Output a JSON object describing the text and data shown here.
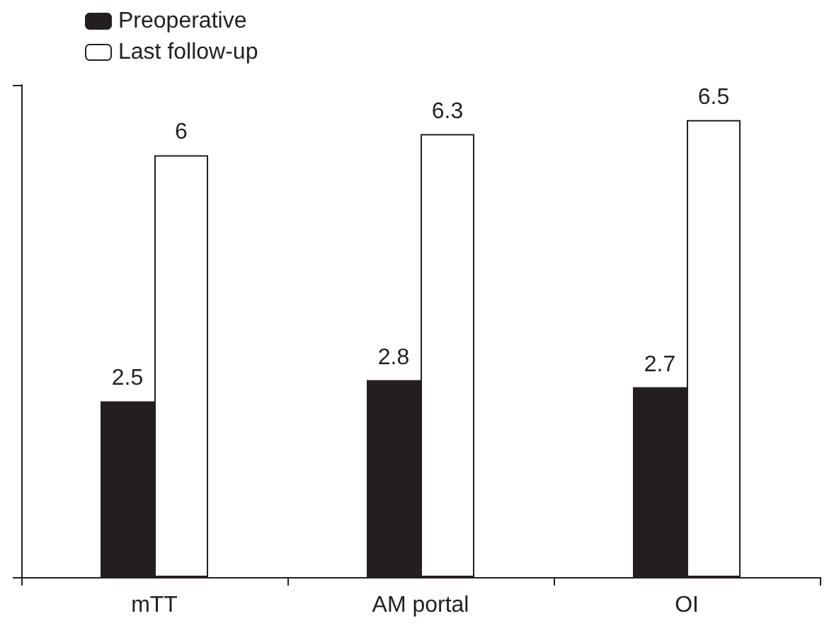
{
  "chart_data": {
    "type": "bar",
    "categories": [
      "mTT",
      "AM portal",
      "OI"
    ],
    "series": [
      {
        "name": "Preoperative",
        "color": "#231f20",
        "values": [
          2.5,
          2.8,
          2.7
        ]
      },
      {
        "name": "Last follow-up",
        "color": "#ffffff",
        "values": [
          6,
          6.3,
          6.5
        ]
      }
    ],
    "ylim": [
      0,
      7
    ],
    "yticks": [
      {
        "value": 0,
        "label": null
      },
      {
        "value": 7,
        "label": null
      }
    ],
    "tick_labels": "x",
    "data_labels": true,
    "legend": "top left",
    "grid": false
  }
}
